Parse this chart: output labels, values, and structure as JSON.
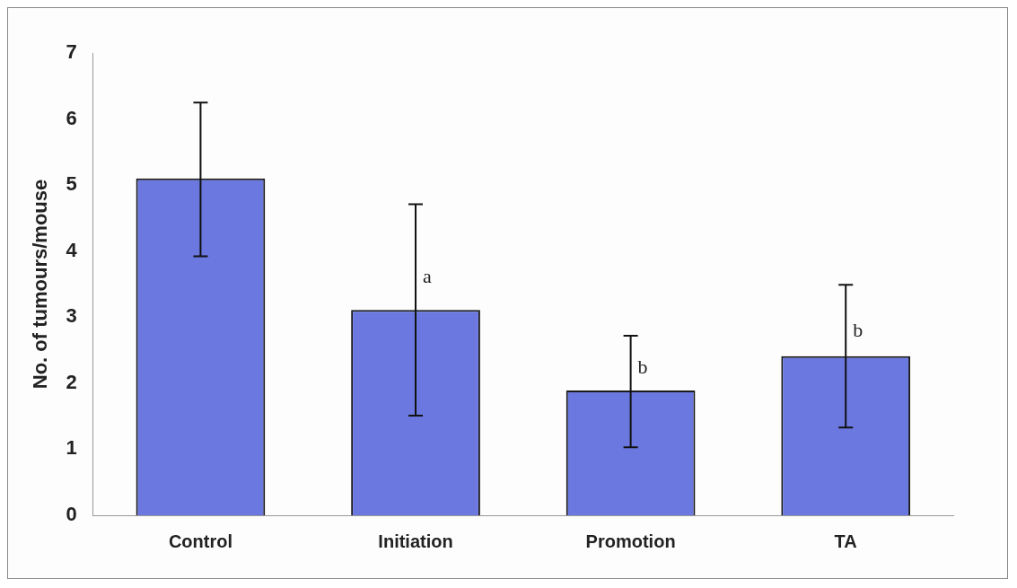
{
  "chart_data": {
    "type": "bar",
    "ylabel": "No. of tumours/mouse",
    "categories": [
      "Control",
      "Initiation",
      "Promotion",
      "TA"
    ],
    "values": [
      5.1,
      3.11,
      1.89,
      2.41
    ],
    "errors": [
      [
        3.92,
        6.25
      ],
      [
        1.51,
        4.71
      ],
      [
        1.03,
        2.72
      ],
      [
        1.33,
        3.49
      ]
    ],
    "color": "#6b78e0",
    "ylim": [
      0,
      7
    ],
    "yticks": [
      0,
      1,
      2,
      3,
      4,
      5,
      6,
      7
    ],
    "grid": false,
    "legend": false,
    "annotations": [
      {
        "text": "a",
        "x": "Initiation",
        "y": 3.6
      },
      {
        "text": "b",
        "x": "Promotion",
        "y": 2.23
      },
      {
        "text": "b",
        "x": "TA",
        "y": 2.78
      }
    ]
  }
}
